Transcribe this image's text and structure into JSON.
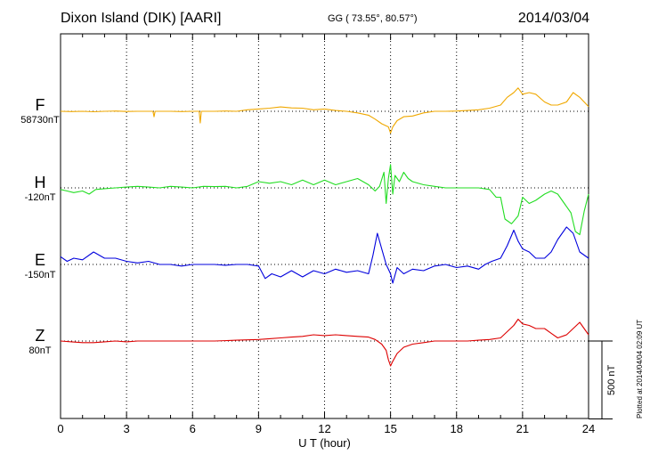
{
  "header": {
    "station": "Dixon Island (DIK)  [AARI]",
    "coords": "GG ( 73.55°,  80.57°)",
    "date": "2014/03/04"
  },
  "plotted_note": "Plotted at 2014/04/04 02:09 UT",
  "scale_label": "500 nT",
  "chart_data": {
    "type": "line",
    "xlabel": "U T (hour)",
    "x_ticks": [
      "0",
      "3",
      "6",
      "9",
      "12",
      "15",
      "18",
      "21",
      "24"
    ],
    "xlim": [
      0,
      24
    ],
    "scale_nT": 500,
    "grid": true,
    "series": [
      {
        "name": "F",
        "baseline_label": "58730nT",
        "color": "#f0a800",
        "x": [
          0,
          0.5,
          1,
          1.5,
          2,
          2.5,
          3,
          3.5,
          4,
          4.2,
          4.25,
          4.3,
          4.5,
          5,
          5.5,
          6,
          6.3,
          6.35,
          6.4,
          6.5,
          7,
          7.5,
          8,
          8.5,
          9,
          9.5,
          10,
          10.5,
          11,
          11.5,
          12,
          12.5,
          13,
          13.5,
          14,
          14.3,
          14.6,
          14.9,
          15.0,
          15.1,
          15.3,
          15.6,
          16,
          16.5,
          17,
          17.5,
          18,
          18.5,
          19,
          19.5,
          20,
          20.3,
          20.6,
          20.8,
          21,
          21.3,
          21.6,
          22,
          22.3,
          22.6,
          23,
          23.3,
          23.6,
          24
        ],
        "values": [
          0,
          -2,
          0,
          -3,
          0,
          2,
          -1,
          0,
          0,
          0,
          -35,
          0,
          0,
          0,
          -2,
          0,
          0,
          -75,
          0,
          0,
          0,
          2,
          0,
          10,
          15,
          20,
          28,
          22,
          20,
          10,
          15,
          5,
          0,
          -10,
          -25,
          -50,
          -80,
          -100,
          -140,
          -100,
          -60,
          -35,
          -30,
          -10,
          0,
          0,
          2,
          5,
          10,
          20,
          40,
          90,
          120,
          150,
          110,
          120,
          110,
          60,
          40,
          40,
          60,
          120,
          90,
          30
        ]
      },
      {
        "name": "H",
        "baseline_label": "-120nT",
        "color": "#22dd22",
        "x": [
          0,
          0.3,
          0.6,
          1,
          1.3,
          1.6,
          2,
          2.5,
          3,
          3.5,
          4,
          4.5,
          5,
          5.5,
          6,
          6.5,
          7,
          7.5,
          8,
          8.5,
          9,
          9.5,
          10,
          10.5,
          11,
          11.5,
          12,
          12.5,
          13,
          13.5,
          14,
          14.3,
          14.5,
          14.7,
          14.8,
          14.9,
          15.0,
          15.1,
          15.2,
          15.4,
          15.6,
          15.8,
          16,
          16.5,
          17,
          17.5,
          18,
          18.5,
          19,
          19.5,
          19.8,
          20,
          20.2,
          20.5,
          20.8,
          21,
          21.3,
          21.6,
          22,
          22.3,
          22.6,
          22.9,
          23.2,
          23.4,
          23.6,
          23.8,
          24
        ],
        "values": [
          -10,
          -20,
          -30,
          -20,
          -40,
          -10,
          -5,
          0,
          5,
          10,
          5,
          0,
          10,
          5,
          0,
          10,
          8,
          10,
          0,
          10,
          40,
          30,
          40,
          20,
          50,
          20,
          50,
          20,
          40,
          60,
          20,
          -20,
          10,
          100,
          -100,
          60,
          150,
          -40,
          80,
          40,
          100,
          60,
          40,
          20,
          10,
          0,
          0,
          0,
          0,
          -10,
          -60,
          -60,
          -200,
          -230,
          -180,
          -60,
          -100,
          -80,
          -40,
          -20,
          -40,
          -100,
          -160,
          -280,
          -300,
          -150,
          -40
        ]
      },
      {
        "name": "E",
        "baseline_label": "-150nT",
        "color": "#0000dd",
        "x": [
          0,
          0.3,
          0.6,
          1,
          1.5,
          2,
          2.5,
          3,
          3.5,
          4,
          4.5,
          5,
          5.5,
          6,
          6.5,
          7,
          7.5,
          8,
          8.5,
          9,
          9.3,
          9.6,
          10,
          10.5,
          11,
          11.5,
          12,
          12.5,
          13,
          13.5,
          14,
          14.2,
          14.4,
          14.6,
          14.8,
          15.0,
          15.1,
          15.3,
          15.6,
          16,
          16.5,
          17,
          17.5,
          18,
          18.5,
          19,
          19.3,
          19.6,
          20,
          20.3,
          20.6,
          20.8,
          21,
          21.3,
          21.6,
          22,
          22.3,
          22.6,
          23,
          23.3,
          23.6,
          24
        ],
        "values": [
          50,
          20,
          40,
          30,
          80,
          40,
          40,
          20,
          10,
          20,
          0,
          0,
          -10,
          0,
          0,
          0,
          -5,
          0,
          0,
          -10,
          -90,
          -60,
          -80,
          -40,
          -80,
          -40,
          -60,
          -30,
          -50,
          -40,
          -60,
          60,
          200,
          100,
          0,
          -60,
          -120,
          -20,
          -60,
          -30,
          -40,
          -10,
          0,
          -20,
          -10,
          -30,
          0,
          20,
          40,
          120,
          220,
          150,
          100,
          80,
          40,
          40,
          80,
          160,
          240,
          200,
          80,
          40
        ]
      },
      {
        "name": "Z",
        "baseline_label": "80nT",
        "color": "#dd0000",
        "x": [
          0,
          0.5,
          1,
          1.5,
          2,
          2.5,
          3,
          3.5,
          4,
          5,
          6,
          7,
          8,
          9,
          9.5,
          10,
          10.5,
          11,
          11.5,
          12,
          12.5,
          13,
          13.5,
          14,
          14.3,
          14.6,
          14.8,
          14.9,
          15.0,
          15.1,
          15.3,
          15.6,
          16,
          16.5,
          17,
          17.5,
          18,
          18.5,
          19,
          19.5,
          20,
          20.3,
          20.6,
          20.8,
          21,
          21.3,
          21.6,
          22,
          22.3,
          22.6,
          23,
          23.3,
          23.6,
          24
        ],
        "values": [
          0,
          -5,
          -10,
          -10,
          -5,
          0,
          -5,
          0,
          0,
          0,
          0,
          0,
          5,
          10,
          15,
          20,
          25,
          30,
          40,
          35,
          40,
          35,
          30,
          25,
          10,
          -20,
          -60,
          -120,
          -160,
          -130,
          -80,
          -40,
          -20,
          -10,
          0,
          0,
          0,
          0,
          5,
          10,
          20,
          60,
          100,
          140,
          110,
          100,
          80,
          80,
          50,
          20,
          40,
          80,
          120,
          40
        ]
      }
    ]
  }
}
